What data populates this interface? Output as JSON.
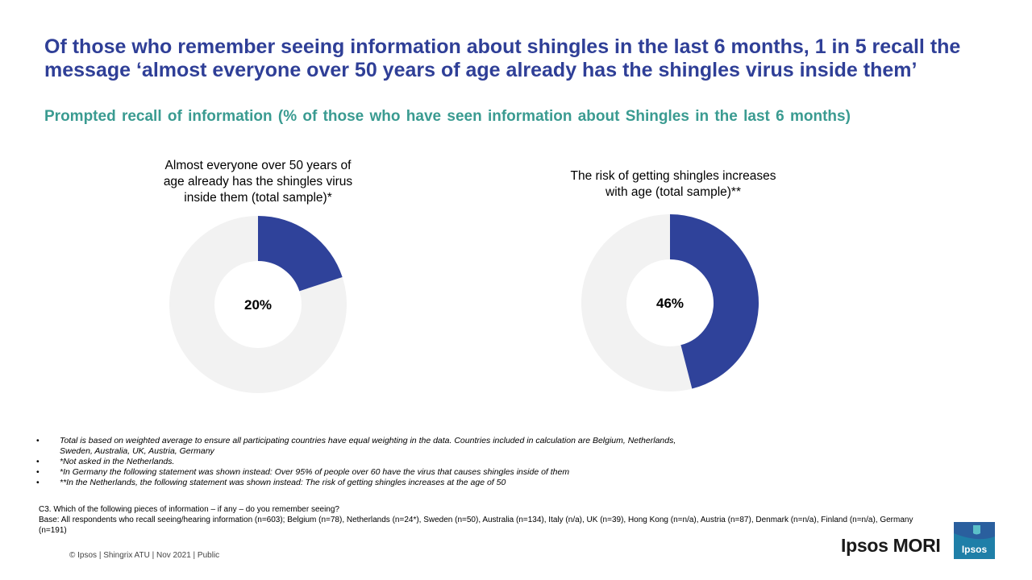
{
  "header": {
    "title": "Of those who remember seeing information about shingles in the last 6 months, 1 in 5 recall the message ‘almost everyone over 50 years of age already has the shingles virus inside them’",
    "subtitle": "Prompted recall of information (% of those who have seen information about Shingles in the last 6 months)"
  },
  "chart_data": [
    {
      "type": "pie",
      "title": "Almost everyone over 50 years of age already has the shingles virus inside them (total sample)*",
      "value": 20,
      "label": "20%",
      "colors": {
        "value": "#2F429A",
        "remainder": "#F2F2F2"
      }
    },
    {
      "type": "pie",
      "title": "The risk of getting shingles increases with age (total sample)**",
      "value": 46,
      "label": "46%",
      "colors": {
        "value": "#2F429A",
        "remainder": "#F2F2F2"
      }
    }
  ],
  "notes": [
    {
      "bullet": "•",
      "text": "Total is based on weighted average to ensure all participating countries have equal weighting in the data. Countries included in calculation are Belgium, Netherlands, Sweden, Australia, UK, Austria, Germany"
    },
    {
      "bullet": "•",
      "text": "*Not asked in the Netherlands."
    },
    {
      "bullet": "•",
      "text": "*In Germany the following statement was shown instead: Over 95% of people over 60 have the virus that causes shingles inside of them"
    },
    {
      "bullet": "•",
      "text": "**In the Netherlands, the following statement was shown instead: The risk of getting shingles increases at the age of 50"
    }
  ],
  "question": {
    "q": "C3. Which of the following pieces of information – if any – do you remember seeing?",
    "base": "Base: All respondents who recall seeing/hearing information (n=603); Belgium (n=78), Netherlands (n=24*), Sweden (n=50), Australia (n=134), Italy (n/a), UK (n=39), Hong Kong (n=n/a), Austria (n=87), Denmark (n=n/a), Finland (n=n/a), Germany (n=191)"
  },
  "footer": {
    "text": "© Ipsos | Shingrix ATU | Nov 2021 | Public"
  },
  "brand": {
    "name": "Ipsos MORI",
    "logo_text": "Ipsos"
  }
}
